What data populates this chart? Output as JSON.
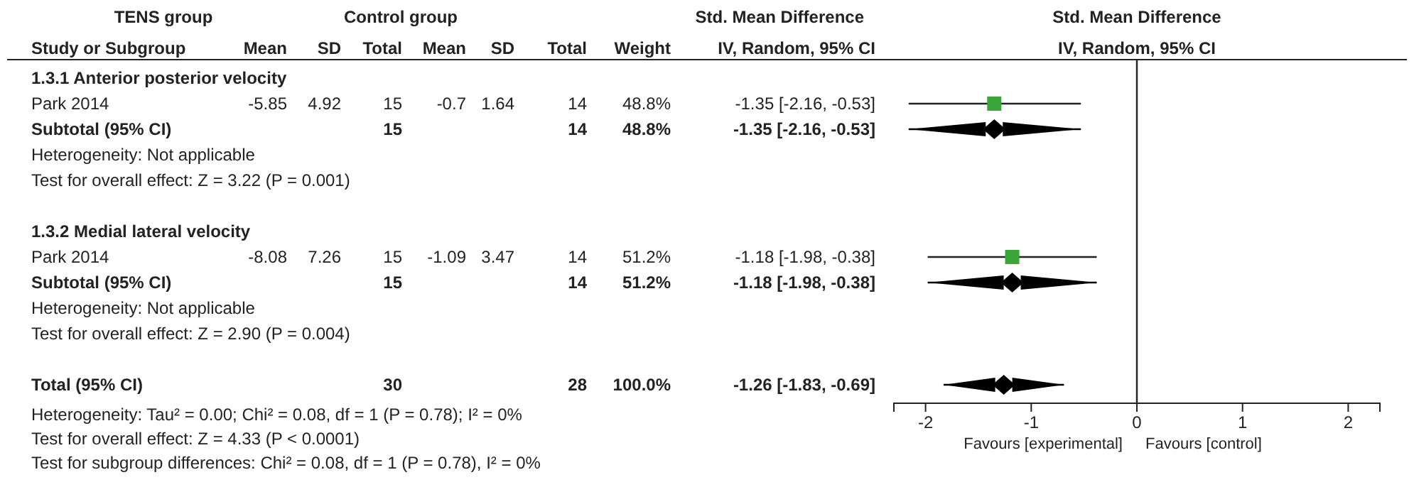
{
  "chart_data": [
    {
      "type": "other",
      "ylabel": "Study or Subgroup",
      "categories": [
        "1.3.1 Anterior posterior velocity",
        "Park 2014",
        "Subtotal (95% CI)",
        "Heterogeneity: Not applicable",
        "Test for overall effect: Z = 3.22 (P = 0.001)",
        null,
        "1.3.2 Medial lateral velocity",
        "Park 2014",
        "Subtotal (95% CI)",
        "Heterogeneity: Not applicable",
        "Test for overall effect: Z = 2.90 (P = 0.004)",
        null,
        "Total (95% CI)"
      ],
      "series": [
        {
          "name": "Mean",
          "values": [
            null,
            -5.85,
            null,
            null,
            null,
            null,
            null,
            -8.08,
            null,
            null,
            null,
            null,
            null
          ]
        },
        {
          "name": "SD",
          "values": [
            null,
            4.92,
            null,
            null,
            null,
            null,
            null,
            7.26,
            null,
            null,
            null,
            null,
            null
          ]
        },
        {
          "name": "Total",
          "values": [
            null,
            15,
            15,
            null,
            null,
            null,
            null,
            15,
            15,
            null,
            null,
            null,
            30
          ]
        },
        {
          "name": "Mean",
          "values": [
            null,
            -0.7,
            null,
            null,
            null,
            null,
            null,
            -1.09,
            null,
            null,
            null,
            null,
            null
          ]
        },
        {
          "name": "SD",
          "values": [
            null,
            1.64,
            null,
            null,
            null,
            null,
            null,
            3.47,
            null,
            null,
            null,
            null,
            null
          ]
        },
        {
          "name": "Total",
          "values": [
            null,
            14,
            14,
            null,
            null,
            null,
            null,
            14,
            14,
            null,
            null,
            null,
            28
          ]
        },
        {
          "name": "Weight",
          "values": [
            null,
            48.8,
            48.8,
            null,
            null,
            null,
            null,
            51.2,
            51.2,
            null,
            null,
            null,
            100.0
          ],
          "value_labels": [
            null,
            "48.8%",
            "48.8%",
            null,
            null,
            null,
            null,
            "51.2%",
            "51.2%",
            null,
            null,
            null,
            "100.0%"
          ]
        },
        {
          "name": "IV, Random, 95% CI",
          "values": [
            null,
            -1.35,
            -1.35,
            null,
            null,
            null,
            null,
            -1.18,
            -1.18,
            null,
            null,
            null,
            -1.26
          ],
          "value_labels": [
            null,
            "-1.35 [-2.16, -0.53]",
            "-1.35 [-2.16, -0.53]",
            null,
            null,
            null,
            null,
            "-1.18 [-1.98, -0.38]",
            "-1.18 [-1.98, -0.38]",
            null,
            null,
            null,
            "-1.26 [-1.83, -0.69]"
          ]
        }
      ],
      "data_labels": true,
      "annotations": [
        "TENS group",
        "Control group",
        "Std. Mean Difference",
        "Heterogeneity: Tau² = 0.00; Chi² = 0.08, df = 1 (P = 0.78); I² = 0%",
        "Test for overall effect: Z = 4.33 (P < 0.0001)",
        "Test for subgroup differences: Chi² = 0.08, df = 1 (P = 0.78), I² = 0%"
      ]
    },
    {
      "type": "scatter",
      "orientation": "horizontal",
      "title": "Std. Mean Difference",
      "subtitle": "IV, Random, 95% CI",
      "tick_labels": "x",
      "categories": [
        null,
        null,
        null,
        null,
        null,
        null,
        null,
        null,
        null,
        null,
        null,
        null,
        null
      ],
      "series": [
        {
          "marker": "square",
          "color": "#3aa63a",
          "values": [
            null,
            -1.35,
            null,
            null,
            null,
            null,
            null,
            -1.18,
            null,
            null,
            null,
            null,
            null
          ],
          "errors": [
            null,
            [
              -2.16,
              -0.53
            ],
            null,
            null,
            null,
            null,
            null,
            [
              -1.98,
              -0.38
            ],
            null,
            null,
            null,
            null,
            null
          ]
        },
        {
          "marker": "diamond",
          "color": "#000000",
          "values": [
            null,
            null,
            -1.35,
            null,
            null,
            null,
            null,
            null,
            -1.18,
            null,
            null,
            null,
            -1.26
          ],
          "errors": [
            null,
            null,
            [
              -2.16,
              -0.53
            ],
            null,
            null,
            null,
            null,
            null,
            [
              -1.98,
              -0.38
            ],
            null,
            null,
            null,
            [
              -1.83,
              -0.69
            ]
          ]
        }
      ],
      "xlim": [
        -2.3,
        2.3
      ],
      "xticks": [
        -2,
        -1,
        0,
        1,
        2
      ],
      "ref_lines": [
        {
          "axis": "x",
          "value": 0
        }
      ],
      "annotations": [
        "Favours [experimental]",
        "Favours [control]"
      ]
    }
  ]
}
